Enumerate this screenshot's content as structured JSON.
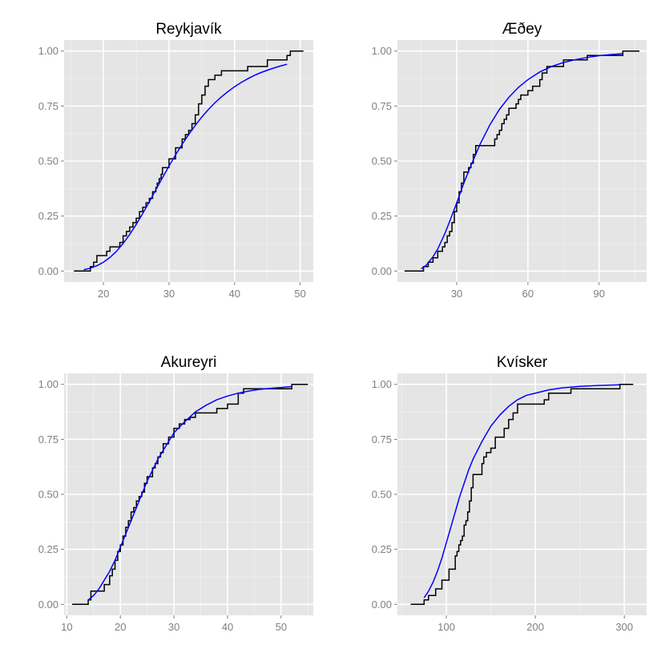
{
  "chart_data": [
    {
      "type": "line",
      "title": "Reykjavík",
      "xlim": [
        14,
        52
      ],
      "ylim": [
        -0.05,
        1.05
      ],
      "x_ticks": [
        20,
        30,
        40,
        50
      ],
      "y_ticks": [
        0,
        0.25,
        0.5,
        0.75,
        1
      ],
      "x_tick_labels": [
        "20",
        "30",
        "40",
        "50"
      ],
      "y_tick_labels": [
        "0.00",
        "0.25",
        "0.50",
        "0.75",
        "1.00"
      ],
      "ecdf": {
        "color": "#000000",
        "x": [
          18,
          18.5,
          19,
          20.5,
          21,
          22.5,
          23,
          23.5,
          24,
          24.5,
          25,
          25.5,
          26,
          26.5,
          27,
          27.5,
          28,
          28.2,
          28.5,
          28.8,
          29,
          30,
          31,
          32,
          32.5,
          33,
          33.5,
          34,
          34.5,
          35,
          35.5,
          36,
          37,
          38,
          40,
          42,
          45,
          48,
          48.5
        ],
        "y": [
          0.02,
          0.04,
          0.07,
          0.09,
          0.11,
          0.13,
          0.16,
          0.18,
          0.2,
          0.22,
          0.24,
          0.27,
          0.29,
          0.31,
          0.33,
          0.36,
          0.38,
          0.4,
          0.42,
          0.44,
          0.47,
          0.51,
          0.56,
          0.6,
          0.62,
          0.64,
          0.67,
          0.71,
          0.76,
          0.8,
          0.84,
          0.87,
          0.89,
          0.91,
          0.91,
          0.93,
          0.96,
          0.98,
          1.0
        ],
        "start_x": 15.5,
        "end_x": 50.5
      },
      "fit": {
        "color": "#0000ff",
        "x": [
          17,
          18,
          19,
          20,
          21,
          22,
          23,
          24,
          25,
          26,
          27,
          28,
          29,
          30,
          31,
          32,
          33,
          34,
          35,
          36,
          37,
          38,
          39,
          40,
          41,
          42,
          43,
          44,
          45,
          46,
          47,
          48
        ],
        "y": [
          0.006,
          0.013,
          0.024,
          0.04,
          0.062,
          0.09,
          0.125,
          0.166,
          0.212,
          0.262,
          0.315,
          0.37,
          0.424,
          0.477,
          0.528,
          0.576,
          0.621,
          0.662,
          0.7,
          0.734,
          0.765,
          0.792,
          0.816,
          0.838,
          0.857,
          0.874,
          0.889,
          0.902,
          0.913,
          0.923,
          0.932,
          0.94
        ]
      }
    },
    {
      "type": "line",
      "title": "Æðey",
      "xlim": [
        5,
        110
      ],
      "ylim": [
        -0.05,
        1.05
      ],
      "x_ticks": [
        30,
        60,
        90
      ],
      "y_ticks": [
        0,
        0.25,
        0.5,
        0.75,
        1
      ],
      "x_tick_labels": [
        "30",
        "60",
        "90"
      ],
      "y_tick_labels": [
        "0.00",
        "0.25",
        "0.50",
        "0.75",
        "1.00"
      ],
      "ecdf": {
        "color": "#000000",
        "x": [
          16,
          18,
          20,
          22,
          24,
          25,
          26,
          27,
          28,
          29,
          30,
          31,
          32,
          33,
          34,
          35,
          36,
          37,
          38,
          42,
          46,
          47,
          48,
          49,
          50,
          51,
          52,
          55,
          56,
          57,
          60,
          62,
          65,
          66,
          68,
          75,
          80,
          85,
          100
        ],
        "y": [
          0.02,
          0.04,
          0.06,
          0.09,
          0.11,
          0.13,
          0.16,
          0.18,
          0.22,
          0.27,
          0.31,
          0.36,
          0.4,
          0.45,
          0.45,
          0.47,
          0.49,
          0.53,
          0.57,
          0.57,
          0.6,
          0.62,
          0.64,
          0.67,
          0.69,
          0.71,
          0.74,
          0.76,
          0.78,
          0.8,
          0.82,
          0.84,
          0.87,
          0.9,
          0.93,
          0.96,
          0.96,
          0.98,
          1.0
        ],
        "start_x": 8,
        "end_x": 107
      },
      "fit": {
        "color": "#0000ff",
        "x": [
          15,
          17,
          20,
          22,
          25,
          27,
          30,
          33,
          36,
          40,
          44,
          48,
          52,
          56,
          60,
          65,
          70,
          75,
          80,
          85,
          90,
          95,
          100
        ],
        "y": [
          0.01,
          0.025,
          0.065,
          0.1,
          0.17,
          0.225,
          0.31,
          0.4,
          0.48,
          0.58,
          0.665,
          0.735,
          0.79,
          0.835,
          0.87,
          0.905,
          0.93,
          0.948,
          0.961,
          0.971,
          0.979,
          0.984,
          0.988
        ]
      }
    },
    {
      "type": "line",
      "title": "Akureyri",
      "xlim": [
        9.5,
        56
      ],
      "ylim": [
        -0.05,
        1.05
      ],
      "x_ticks": [
        10,
        20,
        30,
        40,
        50
      ],
      "y_ticks": [
        0,
        0.25,
        0.5,
        0.75,
        1
      ],
      "x_tick_labels": [
        "10",
        "20",
        "30",
        "40",
        "50"
      ],
      "y_tick_labels": [
        "0.00",
        "0.25",
        "0.50",
        "0.75",
        "1.00"
      ],
      "ecdf": {
        "color": "#000000",
        "x": [
          14,
          14.5,
          16.5,
          17,
          18,
          18.5,
          19,
          19.5,
          20,
          20.5,
          21,
          21.5,
          22,
          22.5,
          23,
          23.5,
          24,
          24.5,
          25,
          25.5,
          26,
          26.5,
          27,
          27.5,
          28,
          29,
          30,
          31,
          32,
          33,
          34,
          36,
          38,
          40,
          42,
          43,
          52
        ],
        "y": [
          0.02,
          0.06,
          0.06,
          0.09,
          0.13,
          0.16,
          0.2,
          0.24,
          0.27,
          0.31,
          0.35,
          0.38,
          0.42,
          0.44,
          0.47,
          0.49,
          0.51,
          0.55,
          0.58,
          0.58,
          0.62,
          0.64,
          0.67,
          0.69,
          0.73,
          0.76,
          0.8,
          0.82,
          0.84,
          0.85,
          0.87,
          0.87,
          0.89,
          0.91,
          0.96,
          0.98,
          1.0
        ],
        "start_x": 11,
        "end_x": 55
      },
      "fit": {
        "color": "#0000ff",
        "x": [
          14,
          15,
          16,
          17,
          18,
          19,
          20,
          21,
          22,
          23,
          24,
          25,
          26,
          27,
          28,
          29,
          30,
          32,
          34,
          36,
          38,
          40,
          42,
          44,
          46,
          48,
          50,
          52
        ],
        "y": [
          0.02,
          0.04,
          0.07,
          0.11,
          0.15,
          0.2,
          0.26,
          0.32,
          0.38,
          0.44,
          0.5,
          0.56,
          0.61,
          0.66,
          0.7,
          0.74,
          0.78,
          0.83,
          0.875,
          0.905,
          0.93,
          0.947,
          0.96,
          0.97,
          0.977,
          0.982,
          0.986,
          0.99
        ]
      }
    },
    {
      "type": "line",
      "title": "Kvísker",
      "xlim": [
        45,
        325
      ],
      "ylim": [
        -0.05,
        1.05
      ],
      "x_ticks": [
        100,
        200,
        300
      ],
      "y_ticks": [
        0,
        0.25,
        0.5,
        0.75,
        1
      ],
      "x_tick_labels": [
        "100",
        "200",
        "300"
      ],
      "y_tick_labels": [
        "0.00",
        "0.25",
        "0.50",
        "0.75",
        "1.00"
      ],
      "ecdf": {
        "color": "#000000",
        "x": [
          75,
          80,
          88,
          95,
          103,
          110,
          112,
          114,
          116,
          118,
          120,
          122,
          124,
          126,
          128,
          130,
          140,
          142,
          145,
          150,
          155,
          160,
          165,
          170,
          175,
          180,
          200,
          210,
          215,
          240,
          295
        ],
        "y": [
          0.02,
          0.04,
          0.07,
          0.11,
          0.16,
          0.22,
          0.24,
          0.27,
          0.29,
          0.31,
          0.36,
          0.38,
          0.42,
          0.47,
          0.53,
          0.59,
          0.64,
          0.67,
          0.69,
          0.71,
          0.76,
          0.76,
          0.8,
          0.84,
          0.87,
          0.91,
          0.91,
          0.93,
          0.96,
          0.98,
          1.0
        ],
        "start_x": 60,
        "end_x": 310
      },
      "fit": {
        "color": "#0000ff",
        "x": [
          75,
          80,
          85,
          90,
          95,
          100,
          105,
          110,
          115,
          120,
          125,
          130,
          140,
          150,
          160,
          170,
          180,
          190,
          200,
          215,
          230,
          250,
          270,
          295
        ],
        "y": [
          0.03,
          0.06,
          0.1,
          0.15,
          0.21,
          0.28,
          0.35,
          0.42,
          0.49,
          0.55,
          0.61,
          0.66,
          0.74,
          0.81,
          0.86,
          0.9,
          0.93,
          0.95,
          0.96,
          0.975,
          0.984,
          0.991,
          0.995,
          0.998
        ]
      }
    }
  ]
}
